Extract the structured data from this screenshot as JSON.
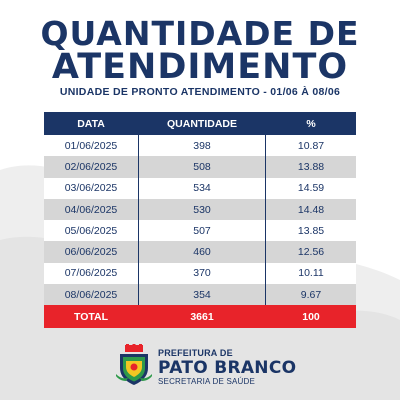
{
  "colors": {
    "navy": "#1b3566",
    "red": "#e8232a",
    "stripe": "#d6d6d6"
  },
  "header": {
    "title_line1": "QUANTIDADE DE",
    "title_line2": "ATENDIMENTO",
    "subtitle": "UNIDADE DE PRONTO ATENDIMENTO - 01/06 À 08/06"
  },
  "table": {
    "columns": [
      "DATA",
      "QUANTIDADE",
      "%"
    ],
    "rows": [
      [
        "01/06/2025",
        "398",
        "10.87"
      ],
      [
        "02/06/2025",
        "508",
        "13.88"
      ],
      [
        "03/06/2025",
        "534",
        "14.59"
      ],
      [
        "04/06/2025",
        "530",
        "14.48"
      ],
      [
        "05/06/2025",
        "507",
        "13.85"
      ],
      [
        "06/06/2025",
        "460",
        "12.56"
      ],
      [
        "07/06/2025",
        "370",
        "10.11"
      ],
      [
        "08/06/2025",
        "354",
        "9.67"
      ]
    ],
    "total": [
      "TOTAL",
      "3661",
      "100"
    ]
  },
  "footer": {
    "prefix": "PREFEITURA DE",
    "city": "PATO BRANCO",
    "department": "SECRETARIA DE SAÚDE",
    "crest_icon": "city-crest-icon"
  }
}
